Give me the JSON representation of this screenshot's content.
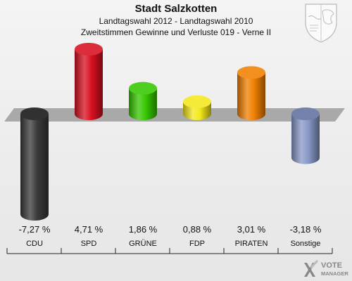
{
  "header": {
    "title": "Stadt Salzkotten",
    "subtitle": "Landtagswahl 2012 - Landtagswahl 2010",
    "subtitle2": "Zweitstimmen Gewinne und Verluste 019 - Verne II"
  },
  "chart_data": {
    "type": "bar",
    "categories": [
      "CDU",
      "SPD",
      "GRÜNE",
      "FDP",
      "PIRATEN",
      "Sonstige"
    ],
    "values": [
      -7.27,
      4.71,
      1.86,
      0.88,
      3.01,
      -3.18
    ],
    "value_labels": [
      "-7,27 %",
      "4,71 %",
      "1,86 %",
      "0,88 %",
      "3,01 %",
      "-3,18 %"
    ],
    "colors": [
      "#3a3a3a",
      "#d81020",
      "#36c800",
      "#f4e81c",
      "#f08000",
      "#8898c8"
    ],
    "ylim": [
      -7.27,
      4.71
    ],
    "grid": false
  },
  "logo": {
    "text_line1": "VOTE",
    "text_line2": "MANAGER"
  }
}
